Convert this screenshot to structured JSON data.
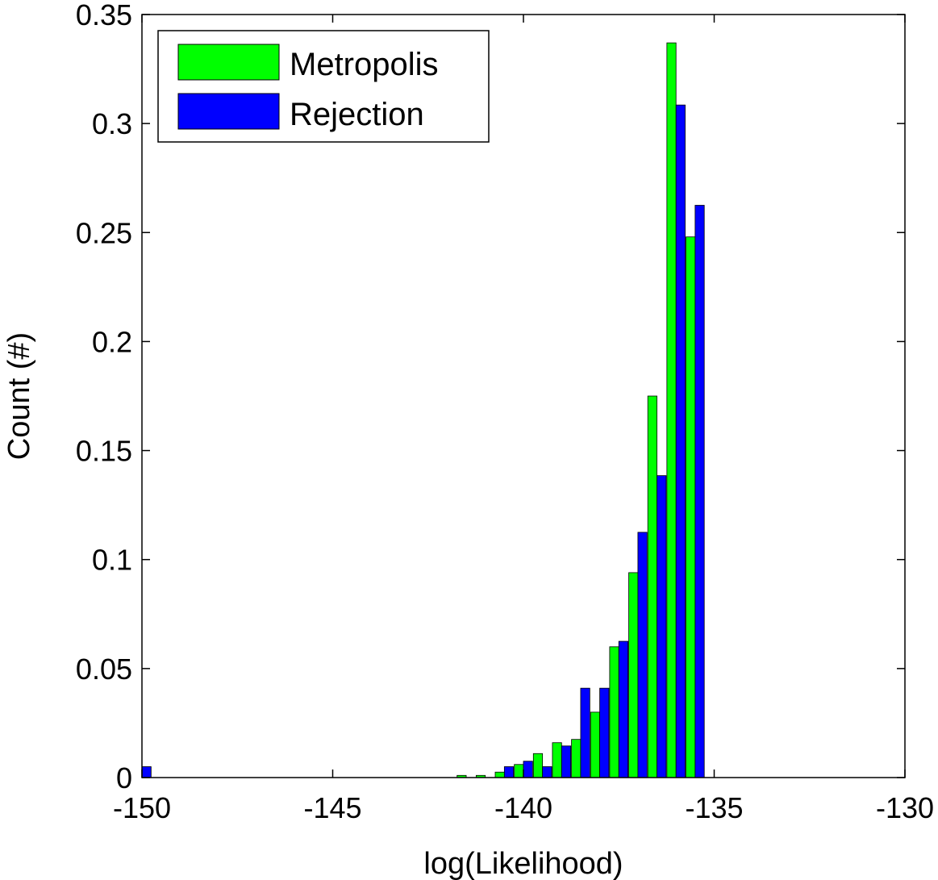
{
  "chart_data": {
    "type": "bar",
    "xlabel": "log(Likelihood)",
    "ylabel": "Count (#)",
    "xlim": [
      -150,
      -130
    ],
    "ylim": [
      0,
      0.35
    ],
    "xticks": [
      -150,
      -145,
      -140,
      -135,
      -130
    ],
    "xtick_labels": [
      "-150",
      "-145",
      "-140",
      "-135",
      "-130"
    ],
    "yticks": [
      0,
      0.05,
      0.1,
      0.15,
      0.2,
      0.25,
      0.3,
      0.35
    ],
    "ytick_labels": [
      "0",
      "0.05",
      "0.1",
      "0.15",
      "0.2",
      "0.25",
      "0.3",
      "0.35"
    ],
    "grid": false,
    "legend_position": "top-left",
    "bin_width": 0.5,
    "series": [
      {
        "name": "Metropolis",
        "color": "#00ff00",
        "x": [
          -141.5,
          -141.0,
          -140.5,
          -140.0,
          -139.5,
          -139.0,
          -138.5,
          -138.0,
          -137.5,
          -137.0,
          -136.5,
          -136.0,
          -135.5
        ],
        "values": [
          0.001,
          0.001,
          0.0025,
          0.006,
          0.011,
          0.016,
          0.0175,
          0.03,
          0.06,
          0.094,
          0.175,
          0.337,
          0.248
        ]
      },
      {
        "name": "Rejection",
        "color": "#0000ff",
        "x": [
          -150.0,
          -140.5,
          -140.0,
          -139.5,
          -139.0,
          -138.5,
          -138.0,
          -137.5,
          -137.0,
          -136.5,
          -136.0,
          -135.5
        ],
        "values": [
          0.005,
          0.005,
          0.0075,
          0.005,
          0.0145,
          0.041,
          0.041,
          0.0625,
          0.1125,
          0.1385,
          0.3085,
          0.2625
        ]
      }
    ]
  }
}
